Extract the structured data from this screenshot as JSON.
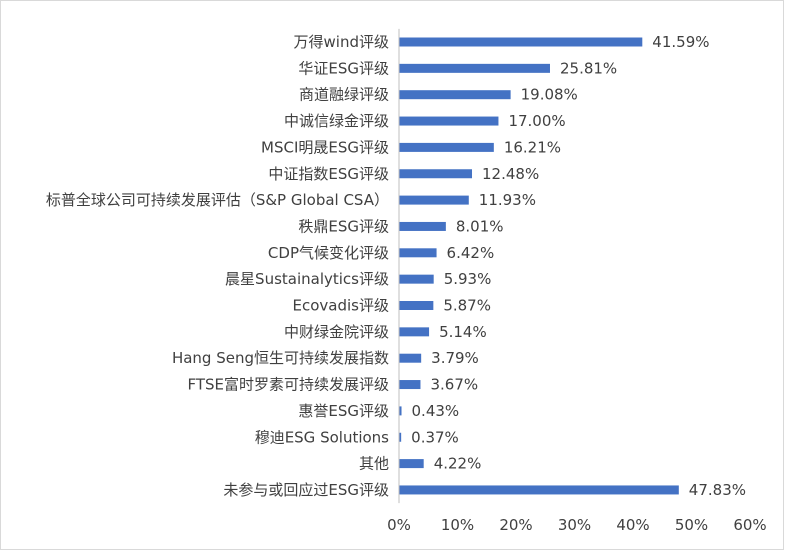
{
  "chart_data": {
    "type": "bar",
    "orientation": "horizontal",
    "title": "",
    "xlabel": "",
    "ylabel": "",
    "categories": [
      "万得wind评级",
      "华证ESG评级",
      "商道融绿评级",
      "中诚信绿金评级",
      "MSCI明晟ESG评级",
      "中证指数ESG评级",
      "标普全球公司可持续发展评估（S&P Global CSA）",
      "秩鼎ESG评级",
      "CDP气候变化评级",
      "晨星Sustainalytics评级",
      "Ecovadis评级",
      "中财绿金院评级",
      "Hang Seng恒生可持续发展指数",
      "FTSE富时罗素可持续发展评级",
      "惠誉ESG评级",
      "穆迪ESG Solutions",
      "其他",
      "未参与或回应过ESG评级"
    ],
    "values": [
      41.59,
      25.81,
      19.08,
      17.0,
      16.21,
      12.48,
      11.93,
      8.01,
      6.42,
      5.93,
      5.87,
      5.14,
      3.79,
      3.67,
      0.43,
      0.37,
      4.22,
      47.83
    ],
    "data_labels": [
      "41.59%",
      "25.81%",
      "19.08%",
      "17.00%",
      "16.21%",
      "12.48%",
      "11.93%",
      "8.01%",
      "6.42%",
      "5.93%",
      "5.87%",
      "5.14%",
      "3.79%",
      "3.67%",
      "0.43%",
      "0.37%",
      "4.22%",
      "47.83%"
    ],
    "xlim": [
      0,
      60
    ],
    "x_ticks": [
      "0%",
      "10%",
      "20%",
      "30%",
      "40%",
      "50%",
      "60%"
    ],
    "grid": false,
    "legend": "none",
    "colors": {
      "bar": "#4472c4",
      "axis": "#bfbfbf",
      "text": "#404040"
    }
  }
}
